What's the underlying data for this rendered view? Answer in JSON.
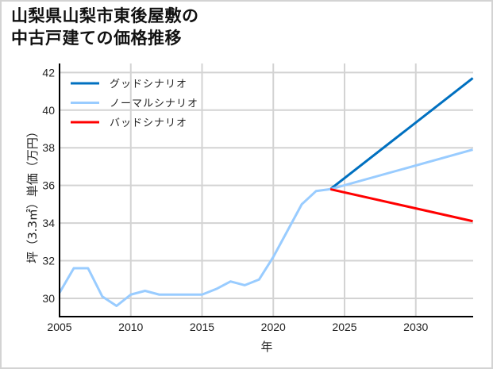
{
  "title": {
    "line1": "山梨県山梨市東後屋敷の",
    "line2": "中古戸建ての価格推移"
  },
  "chart_data": {
    "type": "line",
    "title": "山梨県山梨市東後屋敷の中古戸建ての価格推移",
    "xlabel": "年",
    "ylabel": "坪（3.3㎡）単価（万円）",
    "xlim": [
      2005,
      2034
    ],
    "ylim": [
      29,
      42.2
    ],
    "x_ticks": [
      2005,
      2010,
      2015,
      2020,
      2025,
      2030
    ],
    "y_ticks": [
      30,
      32,
      34,
      36,
      38,
      40,
      42
    ],
    "grid": true,
    "legend_position": "upper left",
    "historical": {
      "x": [
        2005,
        2006,
        2007,
        2008,
        2009,
        2010,
        2011,
        2012,
        2013,
        2014,
        2015,
        2016,
        2017,
        2018,
        2019,
        2020,
        2021,
        2022,
        2023,
        2024
      ],
      "values": [
        30.3,
        31.6,
        31.6,
        30.1,
        29.6,
        30.2,
        30.4,
        30.2,
        30.2,
        30.2,
        30.2,
        30.5,
        30.9,
        30.7,
        31.0,
        32.2,
        33.6,
        35.0,
        35.7,
        35.8
      ],
      "color": "#99ccff"
    },
    "series": [
      {
        "name": "グッドシナリオ",
        "color": "#0070c0",
        "x": [
          2024,
          2034
        ],
        "values": [
          35.8,
          41.7
        ]
      },
      {
        "name": "ノーマルシナリオ",
        "color": "#99ccff",
        "x": [
          2024,
          2034
        ],
        "values": [
          35.8,
          37.9
        ]
      },
      {
        "name": "バッドシナリオ",
        "color": "#ff0000",
        "x": [
          2024,
          2034
        ],
        "values": [
          35.8,
          34.1
        ]
      }
    ]
  }
}
